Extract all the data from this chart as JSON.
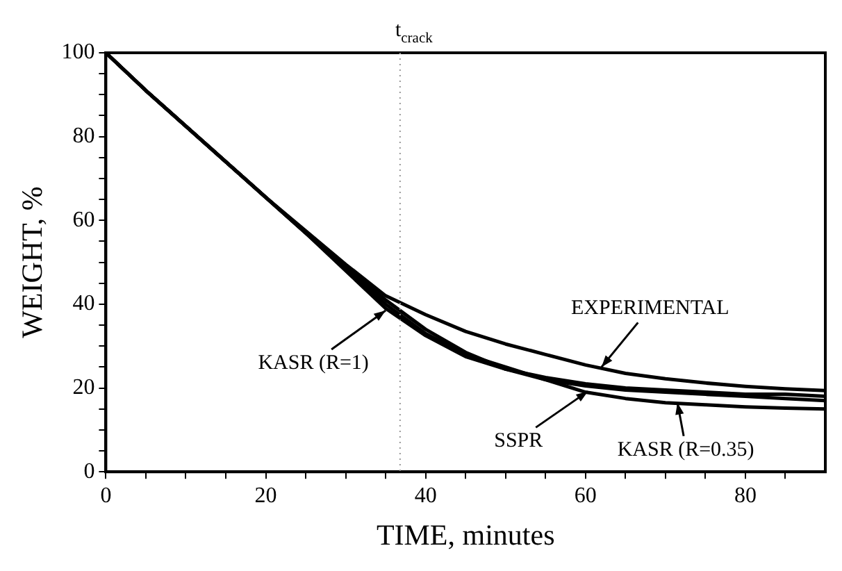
{
  "chart_data": {
    "type": "line",
    "xlabel": "TIME, minutes",
    "ylabel": "WEIGHT, %",
    "x": [
      0,
      5,
      10,
      15,
      20,
      25,
      30,
      35,
      40,
      45,
      50,
      55,
      60,
      65,
      70,
      75,
      80,
      85,
      90
    ],
    "xlim": [
      0,
      90
    ],
    "ylim": [
      0,
      100
    ],
    "xticks": [
      0,
      {
        "value": 5,
        "label": null
      },
      {
        "value": 10,
        "label": null
      },
      {
        "value": 15,
        "label": null
      },
      20,
      {
        "value": 25,
        "label": null
      },
      {
        "value": 30,
        "label": null
      },
      {
        "value": 35,
        "label": null
      },
      40,
      {
        "value": 45,
        "label": null
      },
      {
        "value": 50,
        "label": null
      },
      {
        "value": 55,
        "label": null
      },
      60,
      {
        "value": 65,
        "label": null
      },
      {
        "value": 70,
        "label": null
      },
      {
        "value": 75,
        "label": null
      },
      80,
      {
        "value": 85,
        "label": null
      }
    ],
    "yticks": [
      0,
      {
        "value": 5,
        "label": null
      },
      {
        "value": 10,
        "label": null
      },
      {
        "value": 15,
        "label": null
      },
      20,
      {
        "value": 25,
        "label": null
      },
      {
        "value": 30,
        "label": null
      },
      {
        "value": 35,
        "label": null
      },
      40,
      {
        "value": 45,
        "label": null
      },
      {
        "value": 50,
        "label": null
      },
      {
        "value": 55,
        "label": null
      },
      60,
      {
        "value": 65,
        "label": null
      },
      {
        "value": 70,
        "label": null
      },
      {
        "value": 75,
        "label": null
      },
      80,
      {
        "value": 85,
        "label": null
      },
      {
        "value": 90,
        "label": null
      },
      {
        "value": 95,
        "label": null
      },
      100
    ],
    "grid": false,
    "legend": false,
    "marker": "none",
    "line_style": "solid",
    "series": [
      {
        "color": "#000000",
        "values": [
          100,
          91,
          82.5,
          74,
          65.5,
          57.5,
          49.5,
          42,
          37.5,
          33.5,
          30.5,
          28,
          25.5,
          23.5,
          22.2,
          21.2,
          20.4,
          19.8,
          19.4
        ]
      },
      {
        "color": "#000000",
        "values": [
          100,
          91,
          82.5,
          74,
          65.5,
          57,
          48.5,
          40,
          33,
          28,
          25,
          22,
          20.5,
          19.5,
          19,
          18.5,
          18,
          17.5,
          17
        ]
      },
      {
        "color": "#000000",
        "values": [
          100,
          91,
          82.5,
          74,
          65.5,
          57,
          48,
          39,
          32.5,
          27.5,
          24.5,
          22.5,
          21,
          20,
          19.5,
          19,
          18.5,
          18.5,
          18
        ]
      },
      {
        "color": "#000000",
        "values": [
          100,
          91,
          82.5,
          74,
          65.5,
          57,
          49,
          41,
          34,
          28.5,
          24.5,
          22,
          19,
          17.5,
          16.5,
          16,
          15.5,
          15.2,
          15
        ]
      }
    ],
    "ref_lines": [
      {
        "axis": "x",
        "value": 36.8,
        "label": "t$_{crack}$",
        "color": "#999999",
        "line_style": "dotted"
      }
    ],
    "annotations": [
      {
        "text": "EXPERIMENTAL",
        "x": 62,
        "y": 25
      },
      {
        "text": "KASR (R=1)",
        "x": 35,
        "y": 38.5
      },
      {
        "text": "SSPR",
        "x": 60.3,
        "y": 19.2
      },
      {
        "text": "KASR (R=0.35)",
        "x": 71.5,
        "y": 16.5
      }
    ]
  }
}
